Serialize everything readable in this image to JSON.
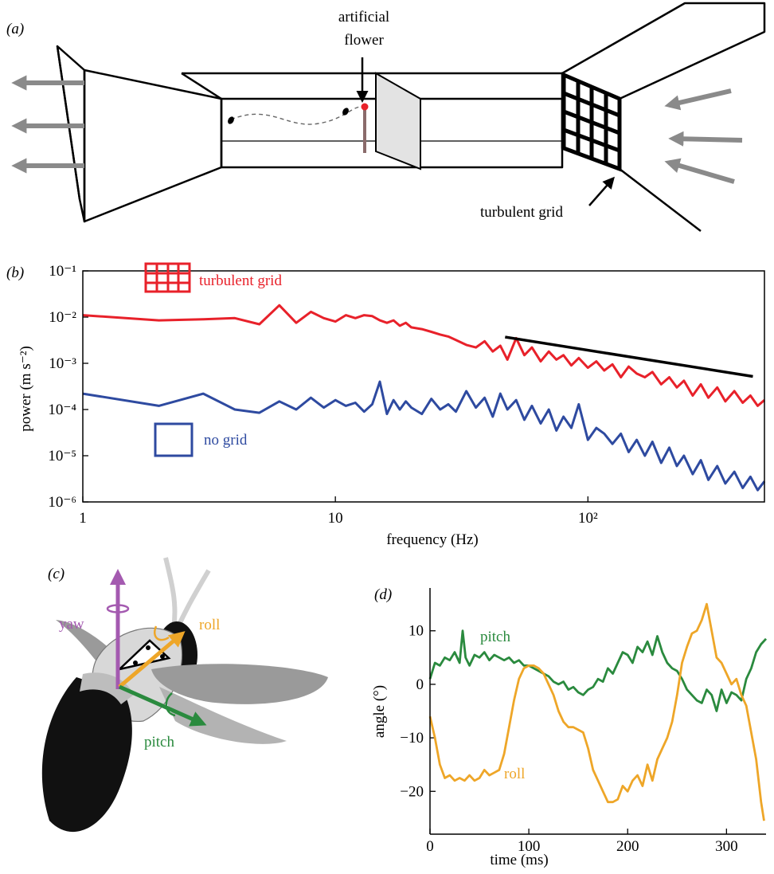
{
  "panels": {
    "a": {
      "label": "(a)",
      "flower_label_line1": "artificial",
      "flower_label_line2": "flower",
      "grid_label": "turbulent grid"
    },
    "b": {
      "label": "(b)"
    },
    "c": {
      "label": "(c)",
      "yaw": "yaw",
      "roll": "roll",
      "pitch": "pitch"
    },
    "d": {
      "label": "(d)"
    }
  },
  "colors": {
    "turbulent": "#e8212a",
    "nogrid": "#2e4aa0",
    "pitch": "#2a8a3e",
    "roll": "#eea628",
    "yaw": "#a45ab0",
    "flow_arrow": "#8a8a8a"
  },
  "chart_data": [
    {
      "type": "line",
      "panel": "b",
      "xscale": "log",
      "yscale": "log",
      "xlim": [
        1,
        500
      ],
      "ylim": [
        1e-06,
        0.1
      ],
      "xlabel": "frequency (Hz)",
      "ylabel": "power (m s⁻²)",
      "xticks": [
        1,
        10,
        100
      ],
      "xtick_labels": [
        "1",
        "10",
        "10²"
      ],
      "yticks": [
        1e-06,
        1e-05,
        0.0001,
        0.001,
        0.01,
        0.1
      ],
      "ytick_labels": [
        "10⁻⁶",
        "10⁻⁵",
        "10⁻⁴",
        "10⁻³",
        "10⁻²",
        "10⁻¹"
      ],
      "legend": [
        "turbulent grid",
        "no grid"
      ],
      "series": [
        {
          "name": "turbulent grid",
          "color": "#e8212a",
          "x": [
            1,
            2,
            3,
            4,
            5,
            6,
            7,
            8,
            9,
            10,
            11,
            12,
            13,
            14,
            15,
            16,
            17,
            18,
            19,
            20,
            22,
            24,
            26,
            28,
            30,
            33,
            36,
            39,
            42,
            45,
            48,
            52,
            56,
            60,
            65,
            70,
            75,
            80,
            86,
            92,
            100,
            108,
            116,
            125,
            135,
            145,
            156,
            168,
            180,
            195,
            210,
            225,
            240,
            260,
            280,
            300,
            325,
            350,
            380,
            410,
            440,
            470,
            500
          ],
          "y": [
            0.011,
            0.0085,
            0.009,
            0.0095,
            0.007,
            0.018,
            0.0075,
            0.013,
            0.0095,
            0.008,
            0.011,
            0.0095,
            0.011,
            0.0105,
            0.0085,
            0.0075,
            0.0085,
            0.0065,
            0.0075,
            0.006,
            0.0055,
            0.0048,
            0.0042,
            0.0038,
            0.0032,
            0.0025,
            0.0022,
            0.003,
            0.0018,
            0.0024,
            0.0012,
            0.0035,
            0.0015,
            0.0022,
            0.0011,
            0.0018,
            0.0012,
            0.0015,
            0.0009,
            0.0013,
            0.0008,
            0.0011,
            0.0007,
            0.00095,
            0.0005,
            0.00085,
            0.0006,
            0.0005,
            0.00065,
            0.00035,
            0.0005,
            0.0003,
            0.00042,
            0.0002,
            0.00035,
            0.00018,
            0.0003,
            0.00015,
            0.00025,
            0.00014,
            0.0002,
            0.00012,
            0.00016
          ]
        },
        {
          "name": "no grid",
          "color": "#2e4aa0",
          "x": [
            1,
            2,
            3,
            4,
            5,
            6,
            7,
            8,
            9,
            10,
            11,
            12,
            13,
            14,
            15,
            16,
            17,
            18,
            19,
            20,
            22,
            24,
            26,
            28,
            30,
            33,
            36,
            39,
            42,
            45,
            48,
            52,
            56,
            60,
            65,
            70,
            75,
            80,
            86,
            92,
            100,
            108,
            116,
            125,
            135,
            145,
            156,
            168,
            180,
            195,
            210,
            225,
            240,
            260,
            280,
            300,
            325,
            350,
            380,
            410,
            440,
            470,
            500
          ],
          "y": [
            0.00022,
            0.00012,
            0.00022,
            0.0001,
            8.5e-05,
            0.00015,
            0.0001,
            0.00018,
            0.00011,
            0.00016,
            0.00012,
            0.00014,
            9e-05,
            0.00013,
            0.0004,
            8e-05,
            0.00016,
            0.0001,
            0.00015,
            0.00011,
            8e-05,
            0.00017,
            0.0001,
            0.00013,
            9e-05,
            0.00025,
            0.00011,
            0.00018,
            7e-05,
            0.00022,
            0.0001,
            0.00016,
            6e-05,
            0.00012,
            5e-05,
            0.0001,
            3.5e-05,
            7e-05,
            4e-05,
            0.00013,
            2.2e-05,
            4e-05,
            3e-05,
            1.8e-05,
            3e-05,
            1.2e-05,
            2.2e-05,
            1e-05,
            2e-05,
            7e-06,
            1.5e-05,
            6e-06,
            1e-05,
            4e-06,
            8e-06,
            3e-06,
            6e-06,
            2.5e-06,
            4.5e-06,
            2e-06,
            3.5e-06,
            1.8e-06,
            2.8e-06
          ]
        }
      ],
      "reference_line": {
        "x": [
          47,
          450
        ],
        "y": [
          0.0037,
          0.00052
        ]
      }
    },
    {
      "type": "line",
      "panel": "d",
      "xlim": [
        0,
        340
      ],
      "ylim": [
        -28,
        18
      ],
      "xlabel": "time (ms)",
      "ylabel": "angle (°)",
      "xticks": [
        0,
        100,
        200,
        300
      ],
      "xtick_labels": [
        "0",
        "100",
        "200",
        "300"
      ],
      "yticks": [
        10,
        0,
        -10,
        -20
      ],
      "ytick_labels": [
        "10",
        "0",
        "−10",
        "−20"
      ],
      "series": [
        {
          "name": "pitch",
          "color": "#2a8a3e",
          "x": [
            0,
            5,
            10,
            15,
            20,
            25,
            30,
            33,
            36,
            40,
            45,
            50,
            55,
            60,
            65,
            70,
            75,
            80,
            85,
            90,
            95,
            100,
            105,
            110,
            115,
            120,
            125,
            130,
            135,
            140,
            145,
            150,
            155,
            160,
            165,
            170,
            175,
            180,
            185,
            190,
            195,
            200,
            205,
            210,
            215,
            220,
            225,
            230,
            235,
            240,
            245,
            250,
            255,
            260,
            265,
            270,
            275,
            280,
            285,
            290,
            295,
            300,
            305,
            310,
            315,
            320,
            325,
            330,
            335,
            340
          ],
          "y": [
            1,
            4,
            3.5,
            5,
            4.5,
            6,
            4,
            10,
            5,
            3.5,
            5.5,
            5,
            6,
            4.5,
            5.5,
            5,
            4.5,
            5,
            4,
            4.5,
            3.5,
            3.5,
            3,
            2.5,
            2,
            1.5,
            0.5,
            0,
            0.5,
            -1,
            -0.5,
            -1.5,
            -2,
            -1,
            -0.5,
            1,
            0.5,
            3,
            2,
            4,
            6,
            5.5,
            4,
            7,
            6,
            8,
            5.5,
            9,
            6,
            4,
            3,
            2.5,
            1,
            -1,
            -2,
            -3,
            -3.5,
            -1,
            -2,
            -5,
            -1,
            -3.5,
            -1.5,
            -2,
            -3,
            1,
            3,
            6,
            7.5,
            8.5
          ]
        },
        {
          "name": "roll",
          "color": "#eea628",
          "x": [
            0,
            5,
            10,
            15,
            20,
            25,
            30,
            35,
            40,
            45,
            50,
            55,
            60,
            65,
            70,
            75,
            80,
            85,
            90,
            95,
            100,
            105,
            110,
            115,
            120,
            125,
            130,
            135,
            140,
            145,
            150,
            155,
            160,
            165,
            170,
            175,
            180,
            185,
            190,
            195,
            200,
            205,
            210,
            215,
            220,
            225,
            230,
            235,
            240,
            245,
            250,
            255,
            260,
            265,
            270,
            275,
            280,
            285,
            290,
            295,
            300,
            305,
            310,
            315,
            320,
            325,
            330,
            335,
            338
          ],
          "y": [
            -6,
            -10,
            -15,
            -17.5,
            -17,
            -18,
            -17.5,
            -18,
            -17,
            -18,
            -17.5,
            -16,
            -17,
            -16.5,
            -16,
            -13,
            -8,
            -3,
            1,
            3,
            3.5,
            3.5,
            3,
            2,
            0,
            -2,
            -5,
            -7,
            -8,
            -8,
            -8.5,
            -9,
            -12,
            -16,
            -18,
            -20,
            -22,
            -22,
            -21.5,
            -19,
            -20,
            -18,
            -17,
            -19,
            -15,
            -18,
            -14,
            -12,
            -10,
            -7,
            -2,
            4,
            7,
            9.5,
            10,
            12,
            15,
            10,
            5,
            4,
            2,
            0,
            1,
            -2,
            -4,
            -9,
            -14,
            -22,
            -25.5
          ]
        }
      ]
    }
  ]
}
